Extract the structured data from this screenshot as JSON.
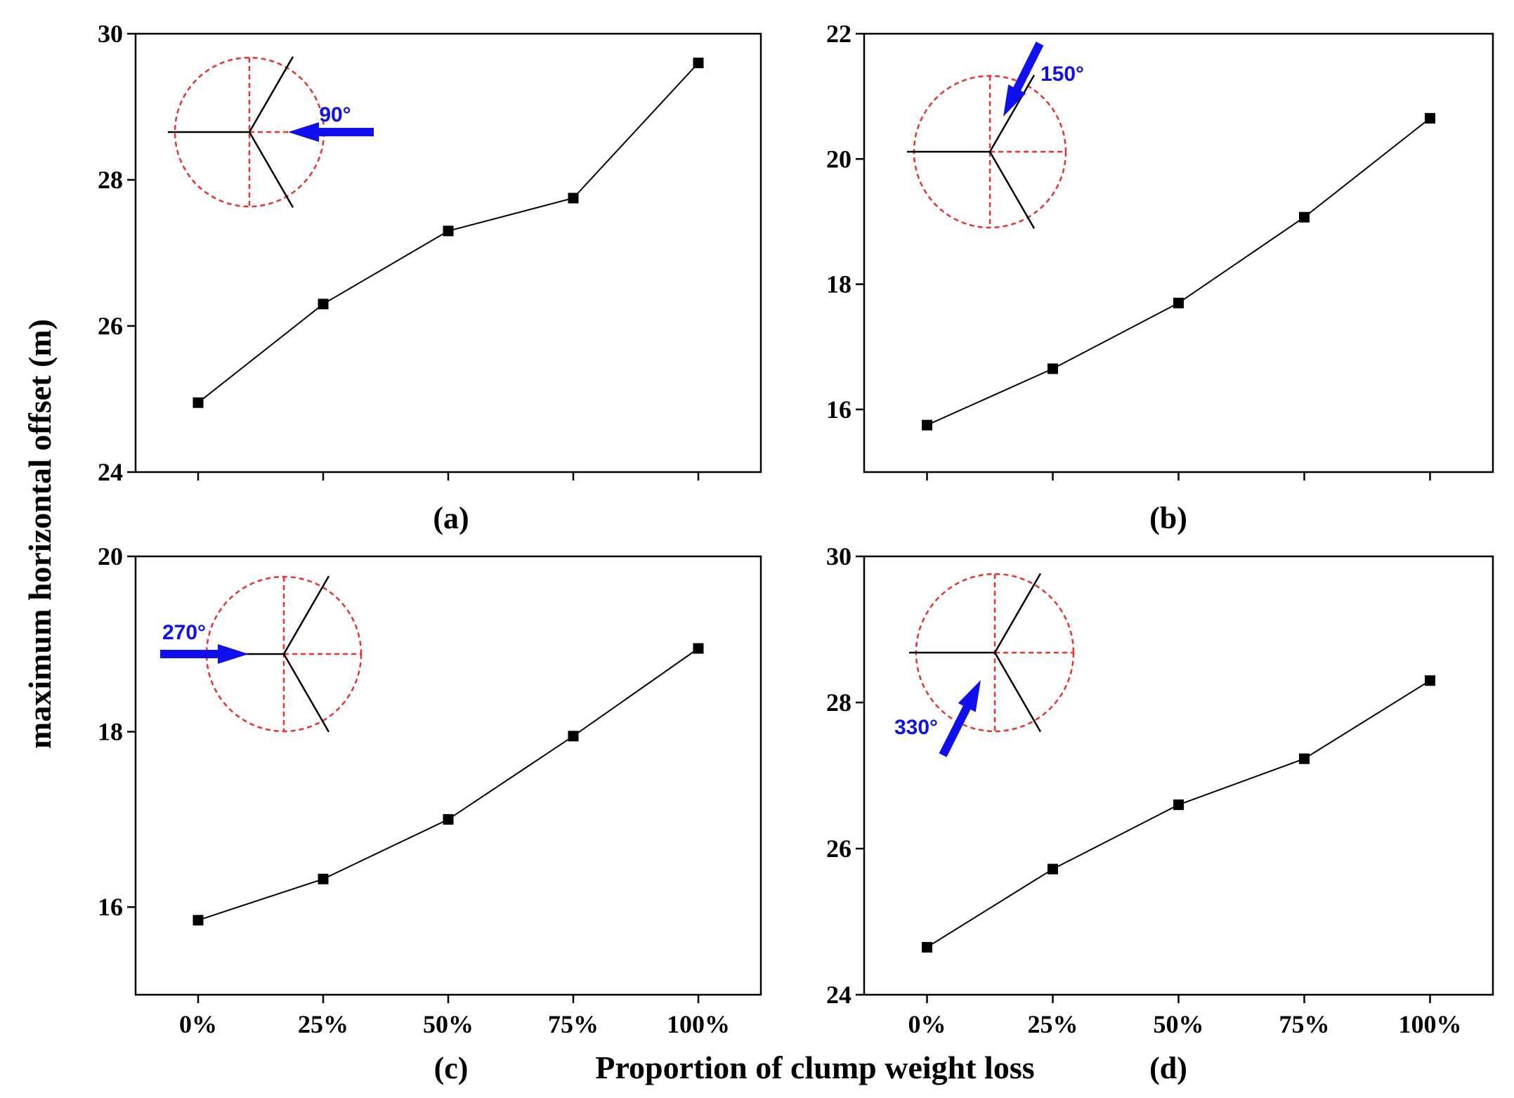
{
  "figure": {
    "ylabel": "maximum horizontal offset (m)",
    "xlabel": "Proportion of clump weight loss"
  },
  "chart_data": [
    {
      "type": "line",
      "panel_label": "(a)",
      "incident_angle": "90°",
      "categories": [
        "0%",
        "25%",
        "50%",
        "75%",
        "100%"
      ],
      "values": [
        24.95,
        26.3,
        27.3,
        27.75,
        29.6
      ],
      "ylim": [
        24,
        30
      ],
      "yticks": [
        24,
        26,
        28,
        30
      ],
      "show_xticklabels": false,
      "grid": false
    },
    {
      "type": "line",
      "panel_label": "(b)",
      "incident_angle": "150°",
      "categories": [
        "0%",
        "25%",
        "50%",
        "75%",
        "100%"
      ],
      "values": [
        15.75,
        16.65,
        17.7,
        19.07,
        20.65
      ],
      "ylim": [
        15,
        22
      ],
      "yticks": [
        16,
        18,
        20,
        22
      ],
      "show_xticklabels": false,
      "grid": false
    },
    {
      "type": "line",
      "panel_label": "(c)",
      "incident_angle": "270°",
      "categories": [
        "0%",
        "25%",
        "50%",
        "75%",
        "100%"
      ],
      "values": [
        15.85,
        16.32,
        17.0,
        17.95,
        18.95
      ],
      "ylim": [
        15,
        20
      ],
      "yticks": [
        16,
        18,
        20
      ],
      "show_xticklabels": true,
      "grid": false
    },
    {
      "type": "line",
      "panel_label": "(d)",
      "incident_angle": "330°",
      "categories": [
        "0%",
        "25%",
        "50%",
        "75%",
        "100%"
      ],
      "values": [
        24.65,
        25.72,
        26.6,
        27.23,
        28.3
      ],
      "ylim": [
        24,
        30
      ],
      "yticks": [
        24,
        26,
        28,
        30
      ],
      "show_xticklabels": true,
      "grid": false
    }
  ]
}
